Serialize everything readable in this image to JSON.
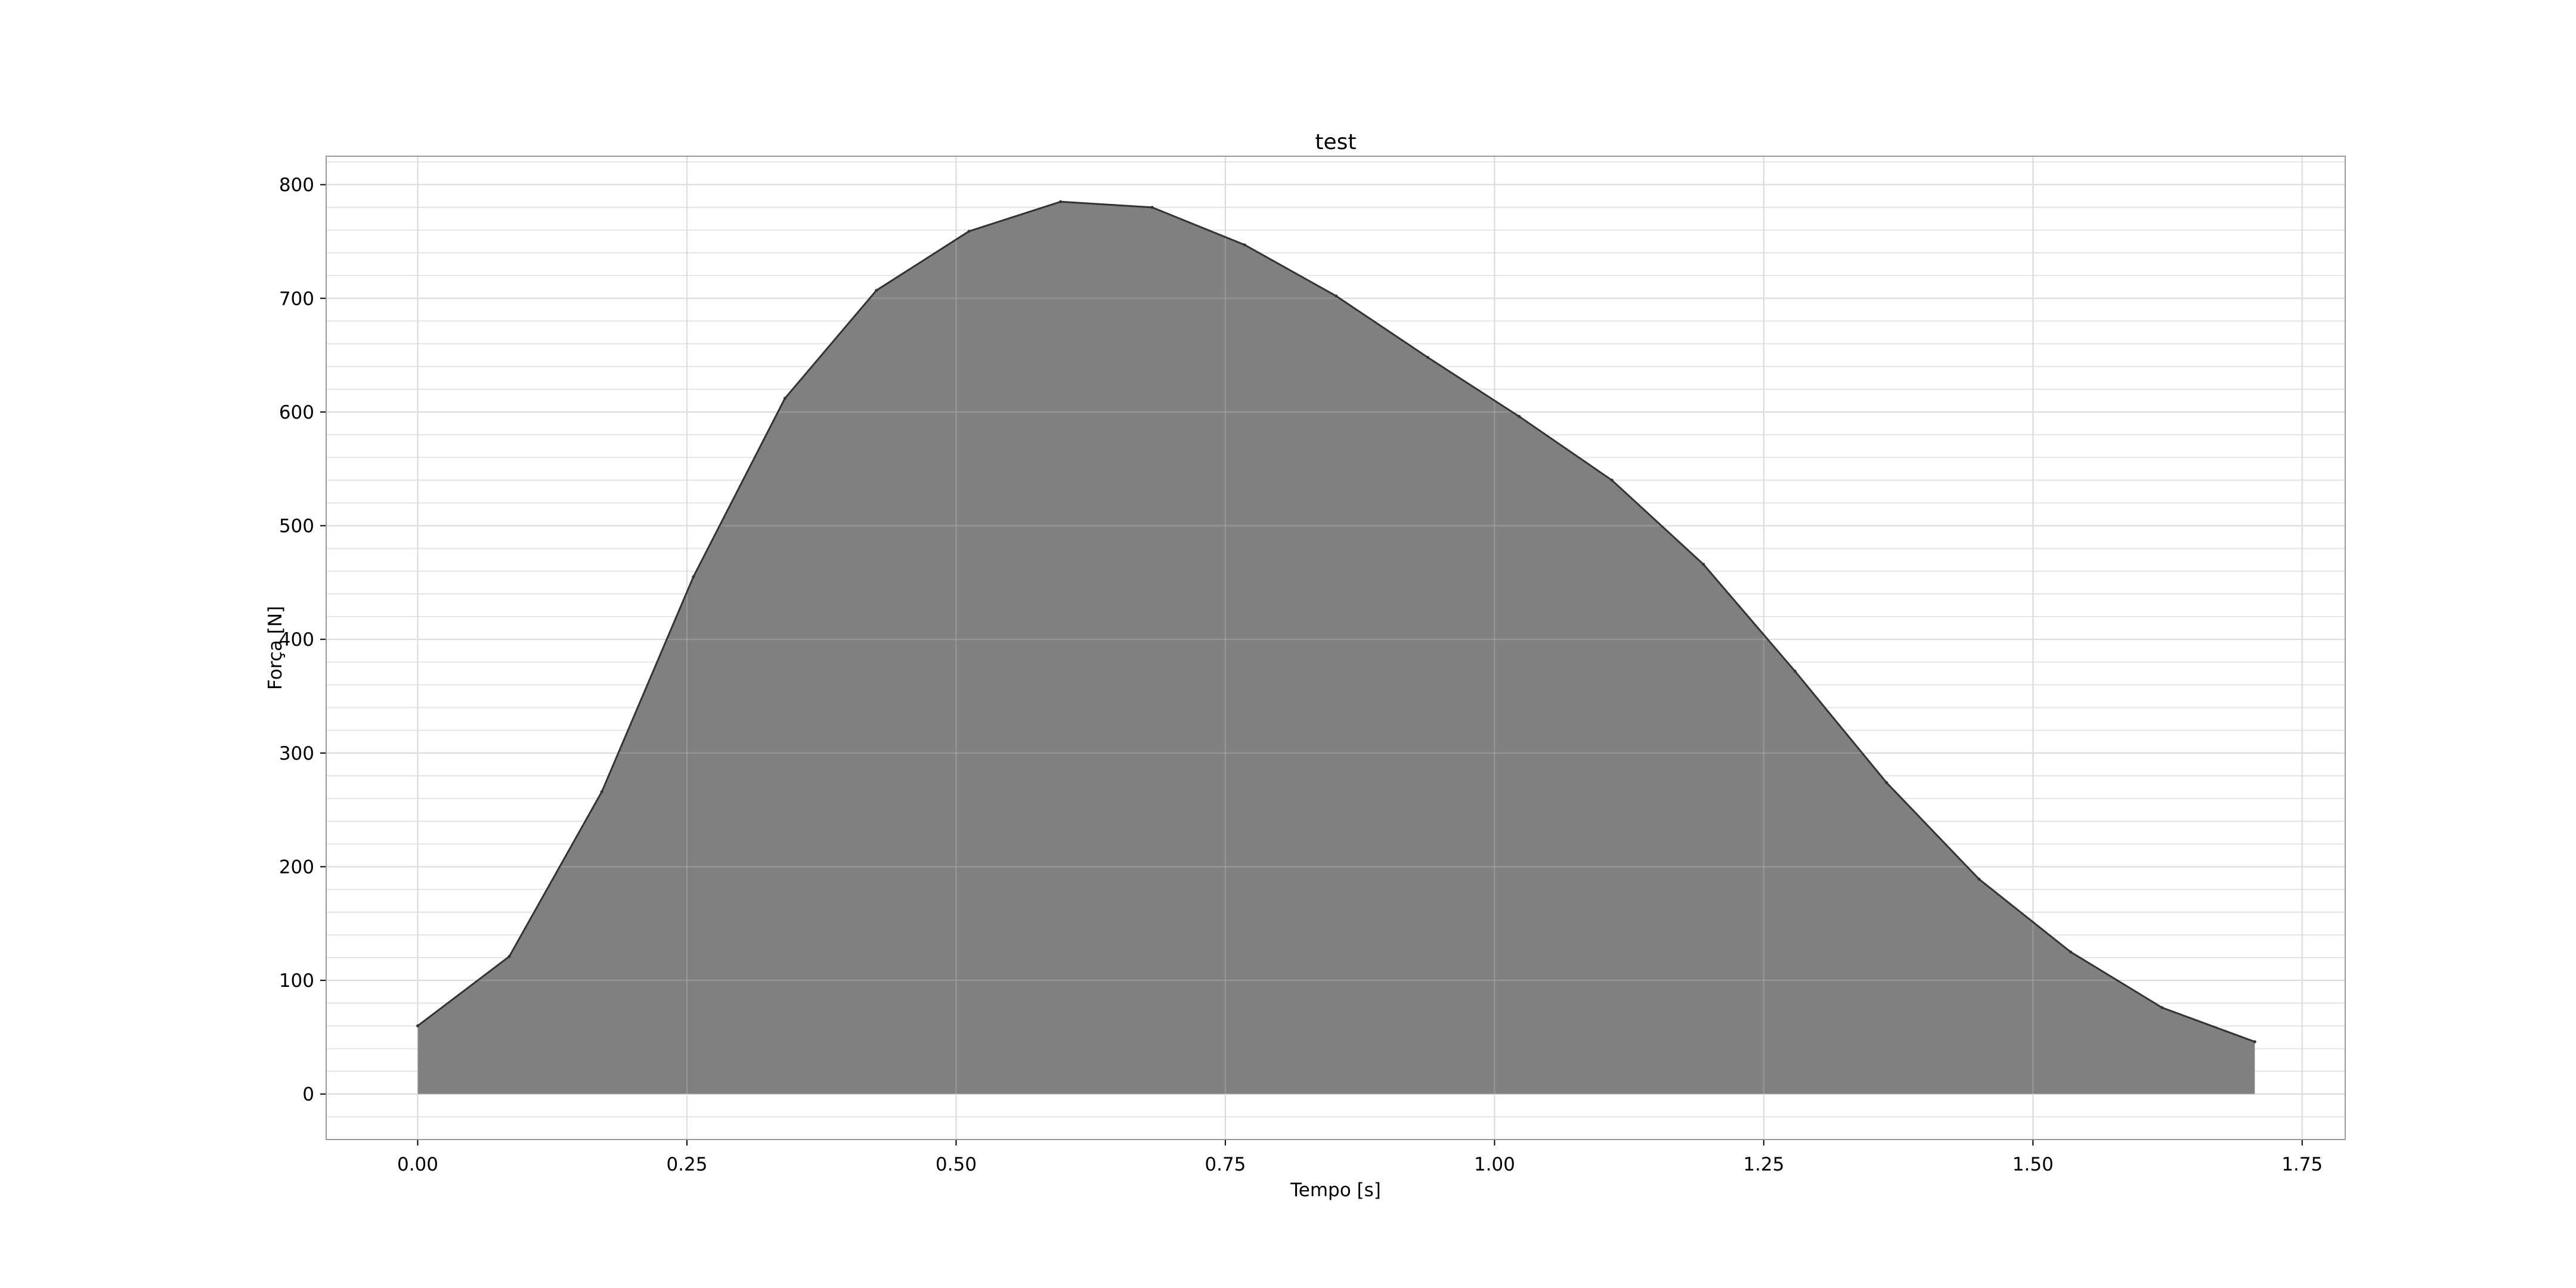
{
  "chart_data": {
    "type": "area",
    "title": "test",
    "xlabel": "Tempo [s]",
    "ylabel": "Força [N]",
    "xlim": [
      -0.085,
      1.79
    ],
    "ylim": [
      -40,
      825
    ],
    "x_ticks": [
      0.0,
      0.25,
      0.5,
      0.75,
      1.0,
      1.25,
      1.5,
      1.75
    ],
    "x_tick_labels": [
      "0.00",
      "0.25",
      "0.50",
      "0.75",
      "1.00",
      "1.25",
      "1.50",
      "1.75"
    ],
    "y_ticks": [
      0,
      100,
      200,
      300,
      400,
      500,
      600,
      700,
      800
    ],
    "y_tick_labels": [
      "0",
      "100",
      "200",
      "300",
      "400",
      "500",
      "600",
      "700",
      "800"
    ],
    "y_minor_step": 20,
    "grid": true,
    "fill_color": "#808080",
    "line_color": "#333333",
    "series": [
      {
        "x": [
          0.0,
          0.085,
          0.171,
          0.256,
          0.341,
          0.426,
          0.512,
          0.597,
          0.682,
          0.768,
          0.853,
          0.938,
          1.023,
          1.109,
          1.194,
          1.279,
          1.364,
          1.45,
          1.535,
          1.62,
          1.706
        ],
        "y": [
          60,
          121,
          266,
          455,
          612,
          707,
          759,
          785,
          780,
          747,
          702,
          648,
          596,
          540,
          466,
          372,
          274,
          189,
          125,
          76,
          46
        ]
      }
    ]
  }
}
